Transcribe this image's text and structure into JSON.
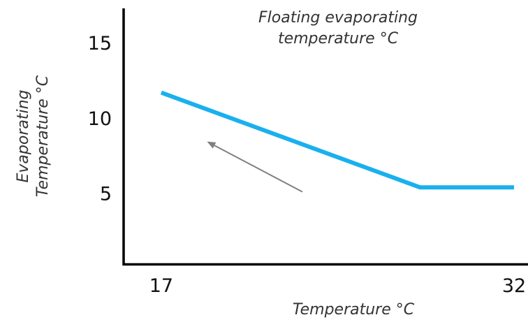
{
  "chart_data": {
    "type": "line",
    "title": "Floating evaporating temperature °C",
    "title_lines": [
      "Floating evaporating",
      "temperature °C"
    ],
    "xlabel": "Temperature °C",
    "ylabel": "Evaporating Temperature °C",
    "ylabel_lines": [
      "Evaporating",
      "Temperature °C"
    ],
    "x_ticks": [
      "17",
      "32"
    ],
    "y_ticks": [
      "5",
      "10",
      "15"
    ],
    "xlim": [
      15.4,
      32
    ],
    "ylim": [
      0.4,
      17.4
    ],
    "grid": false,
    "series": [
      {
        "x": [
          17,
          28,
          32
        ],
        "y": [
          11.8,
          5.5,
          5.5
        ],
        "color": "#1ab0ee"
      }
    ],
    "annotations": [
      {
        "type": "arrow",
        "from": [
          23,
          5.2
        ],
        "to": [
          19,
          8.5
        ],
        "color": "#808080"
      }
    ]
  }
}
